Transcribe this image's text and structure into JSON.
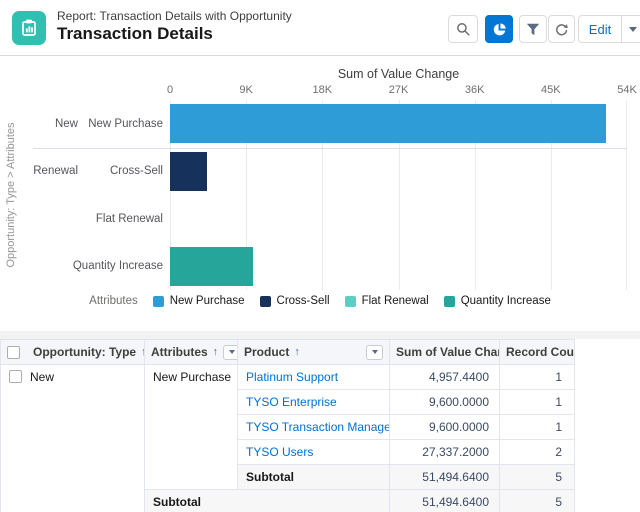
{
  "header": {
    "kicker": "Report: Transaction Details with Opportunity",
    "title": "Transaction Details",
    "actions": {
      "edit_label": "Edit",
      "icons": [
        "search-icon",
        "chart-icon",
        "filter-icon",
        "refresh-icon",
        "dropdown-caret-icon"
      ]
    }
  },
  "chart_data": {
    "type": "bar",
    "orientation": "horizontal",
    "title": "Sum of Value Change",
    "y_axis_label": "Opportunity: Type > Attributes",
    "x_ticks": [
      "0",
      "9K",
      "18K",
      "27K",
      "36K",
      "45K",
      "54K"
    ],
    "xlim": [
      0,
      54000
    ],
    "grid": true,
    "legend_title": "Attributes",
    "legend_position": "bottom",
    "groups": [
      {
        "group": "New",
        "bars": [
          {
            "attribute": "New Purchase",
            "value": 51494.64
          }
        ]
      },
      {
        "group": "Renewal",
        "bars": [
          {
            "attribute": "Cross-Sell",
            "value": 4400
          },
          {
            "attribute": "Flat Renewal",
            "value": 0
          },
          {
            "attribute": "Quantity Increase",
            "value": 9800
          }
        ]
      }
    ],
    "legend": [
      {
        "label": "New Purchase",
        "color": "#2E9CD6"
      },
      {
        "label": "Cross-Sell",
        "color": "#16325C"
      },
      {
        "label": "Flat Renewal",
        "color": "#5BCEC5"
      },
      {
        "label": "Quantity Increase",
        "color": "#26A59A"
      }
    ]
  },
  "table": {
    "columns": [
      {
        "label": "Opportunity: Type",
        "sortable": true,
        "has_menu": true
      },
      {
        "label": "Attributes",
        "sortable": true,
        "has_menu": true
      },
      {
        "label": "Product",
        "sortable": true,
        "has_menu": true
      },
      {
        "label": "Sum of Value Change",
        "sortable": false
      },
      {
        "label": "Record Count",
        "sortable": false
      }
    ],
    "rows": [
      {
        "subtotal": false,
        "cells": [
          {
            "col": "opportunity",
            "text": "New",
            "rowspan": 6,
            "checkbox": true
          },
          {
            "col": "attribute",
            "text": "New Purchase",
            "rowspan": 5
          },
          {
            "col": "product",
            "text": "Platinum Support",
            "link": true
          },
          {
            "col": "value",
            "text": "4,957.4400"
          },
          {
            "col": "count",
            "text": "1"
          }
        ]
      },
      {
        "subtotal": false,
        "cells": [
          {
            "col": "product",
            "text": "TYSO Enterprise",
            "link": true
          },
          {
            "col": "value",
            "text": "9,600.0000"
          },
          {
            "col": "count",
            "text": "1"
          }
        ]
      },
      {
        "subtotal": false,
        "cells": [
          {
            "col": "product",
            "text": "TYSO Transaction Management",
            "link": true
          },
          {
            "col": "value",
            "text": "9,600.0000"
          },
          {
            "col": "count",
            "text": "1"
          }
        ]
      },
      {
        "subtotal": false,
        "cells": [
          {
            "col": "product",
            "text": "TYSO Users",
            "link": true
          },
          {
            "col": "value",
            "text": "27,337.2000"
          },
          {
            "col": "count",
            "text": "2"
          }
        ]
      },
      {
        "subtotal": true,
        "cells": [
          {
            "col": "product",
            "text": "Subtotal",
            "bold": true
          },
          {
            "col": "value",
            "text": "51,494.6400"
          },
          {
            "col": "count",
            "text": "5"
          }
        ]
      },
      {
        "subtotal": true,
        "cells": [
          {
            "col": "attribute",
            "text": "Subtotal",
            "bold": true,
            "colspan": 2
          },
          {
            "col": "value",
            "text": "51,494.6400"
          },
          {
            "col": "count",
            "text": "5"
          }
        ]
      }
    ]
  },
  "colors": {
    "brand_blue": "#0176D3",
    "link_blue": "#0070D2",
    "report_icon_teal": "#2FC0B1"
  }
}
